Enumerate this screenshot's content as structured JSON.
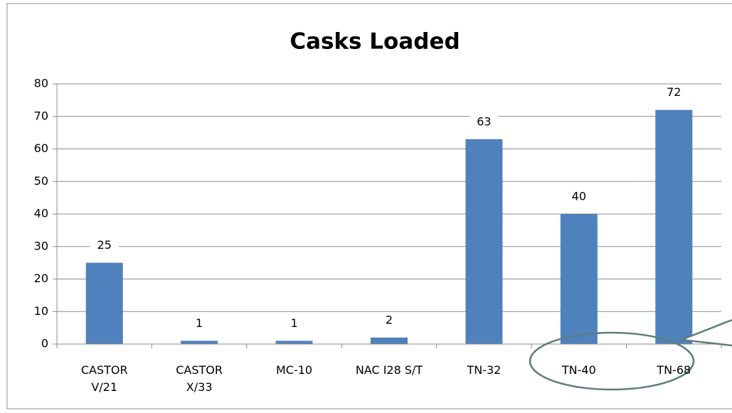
{
  "chart_data": {
    "type": "bar",
    "title": "Casks Loaded",
    "categories": [
      "CASTOR\nV/21",
      "CASTOR\nX/33",
      "MC-10",
      "NAC I28 S/T",
      "TN-32",
      "TN-40",
      "TN-68"
    ],
    "values": [
      25,
      1,
      1,
      2,
      63,
      40,
      72
    ],
    "color": "#4f81bd",
    "ylim": [
      0,
      80
    ],
    "yticks": [
      0,
      10,
      20,
      30,
      40,
      50,
      60,
      70,
      80
    ],
    "grid": true
  }
}
